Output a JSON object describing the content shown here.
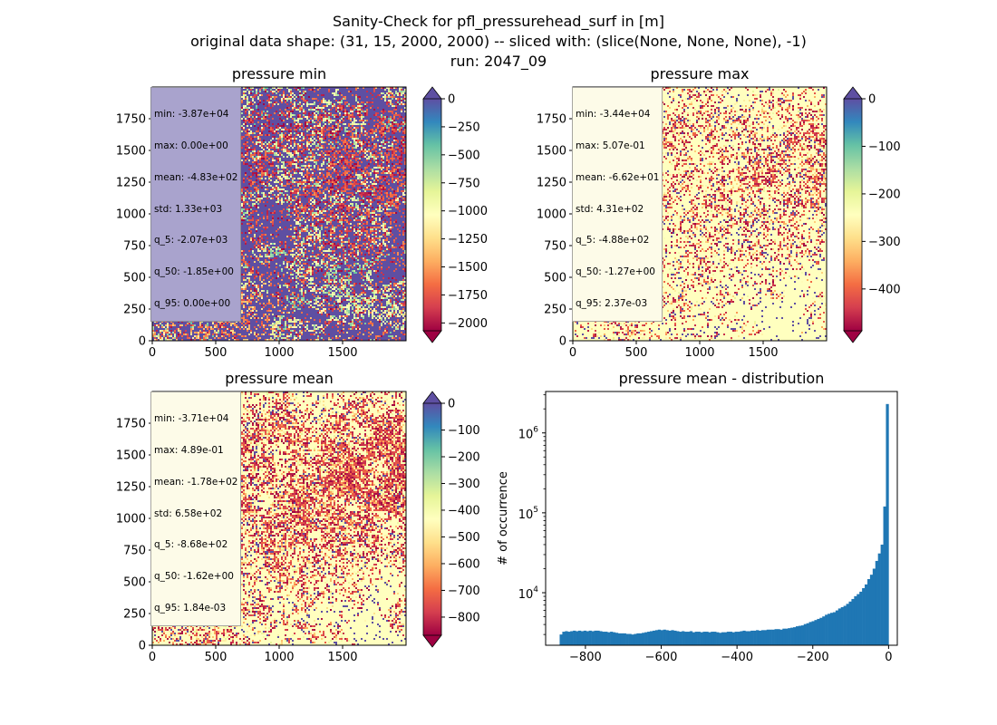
{
  "figure": {
    "title_lines": [
      "Sanity-Check for pfl_pressurehead_surf in [m]",
      "original data shape: (31, 15, 2000, 2000) -- sliced with: (slice(None, None, None), -1)",
      "run: 2047_09"
    ]
  },
  "colormap": "Spectral",
  "colormap_stops": [
    "#9e0142",
    "#d53e4f",
    "#f46d43",
    "#fdae61",
    "#fee08b",
    "#ffffbf",
    "#e6f598",
    "#abdda4",
    "#66c2a5",
    "#3288bd",
    "#5e4fa2"
  ],
  "panels": [
    {
      "id": "min",
      "title": "pressure min",
      "x_ticks": [
        "0",
        "500",
        "1000",
        "1500"
      ],
      "y_ticks": [
        "0",
        "250",
        "500",
        "750",
        "1000",
        "1250",
        "1500",
        "1750"
      ],
      "stats": [
        "min: -3.87e+04",
        "max: 0.00e+00",
        "mean: -4.83e+02",
        "std: 1.33e+03",
        "q_5: -2.07e+03",
        "q_50: -1.85e+00",
        "q_95: 0.00e+00"
      ],
      "stats_bg": "#a9a3cd",
      "colorbar": {
        "range": [
          -2070,
          0
        ],
        "ticks": [
          "0",
          "−250",
          "−500",
          "−750",
          "−1000",
          "−1250",
          "−1500",
          "−1750",
          "−2000"
        ]
      }
    },
    {
      "id": "max",
      "title": "pressure max",
      "x_ticks": [
        "0",
        "500",
        "1000",
        "1500"
      ],
      "y_ticks": [
        "0",
        "250",
        "500",
        "750",
        "1000",
        "1250",
        "1500",
        "1750"
      ],
      "stats": [
        "min: -3.44e+04",
        "max: 5.07e-01",
        "mean: -6.62e+01",
        "std: 4.31e+02",
        "q_5: -4.88e+02",
        "q_50: -1.27e+00",
        "q_95: 2.37e-03"
      ],
      "stats_bg": "#fdfbe8",
      "colorbar": {
        "range": [
          -488,
          0
        ],
        "ticks": [
          "0",
          "−100",
          "−200",
          "−300",
          "−400"
        ]
      }
    },
    {
      "id": "mean",
      "title": "pressure mean",
      "x_ticks": [
        "0",
        "500",
        "1000",
        "1500"
      ],
      "y_ticks": [
        "0",
        "250",
        "500",
        "750",
        "1000",
        "1250",
        "1500",
        "1750"
      ],
      "stats": [
        "min: -3.71e+04",
        "max: 4.89e-01",
        "mean: -1.78e+02",
        "std: 6.58e+02",
        "q_5: -8.68e+02",
        "q_50: -1.62e+00",
        "q_95: 1.84e-03"
      ],
      "stats_bg": "#fdfbe8",
      "colorbar": {
        "range": [
          -868,
          0
        ],
        "ticks": [
          "0",
          "−100",
          "−200",
          "−300",
          "−400",
          "−500",
          "−600",
          "−700",
          "−800"
        ]
      }
    }
  ],
  "histogram": {
    "title": "pressure mean - distribution",
    "ylabel": "# of occurrence",
    "bar_color": "#1f77b4",
    "x_ticks": [
      "−800",
      "−600",
      "−400",
      "−200",
      "0"
    ],
    "y_ticks": [
      "10",
      "10",
      "10"
    ],
    "y_tick_exponents": [
      "6",
      "5",
      "4"
    ]
  },
  "chart_data": [
    {
      "type": "heatmap",
      "title": "pressure min",
      "x_range": [
        0,
        2000
      ],
      "y_range": [
        0,
        2000
      ],
      "value_range": [
        -2070,
        0
      ],
      "colorbar_label": ""
    },
    {
      "type": "heatmap",
      "title": "pressure max",
      "x_range": [
        0,
        2000
      ],
      "y_range": [
        0,
        2000
      ],
      "value_range": [
        -488,
        0
      ],
      "colorbar_label": ""
    },
    {
      "type": "heatmap",
      "title": "pressure mean",
      "x_range": [
        0,
        2000
      ],
      "y_range": [
        0,
        2000
      ],
      "value_range": [
        -868,
        0
      ],
      "colorbar_label": ""
    },
    {
      "type": "bar",
      "title": "pressure mean - distribution",
      "xlabel": "",
      "ylabel": "# of occurrence",
      "y_scale": "log",
      "xlim": [
        -905,
        23
      ],
      "ylim": [
        2200,
        3300000
      ],
      "bin_range": [
        -868,
        0
      ],
      "bin_count": 124,
      "bin_counts": [
        3000,
        3250,
        3300,
        3250,
        3300,
        3350,
        3300,
        3350,
        3300,
        3350,
        3300,
        3350,
        3300,
        3350,
        3350,
        3300,
        3250,
        3250,
        3200,
        3250,
        3200,
        3150,
        3100,
        3100,
        3100,
        3050,
        3050,
        3000,
        3050,
        3100,
        3100,
        3150,
        3200,
        3250,
        3300,
        3350,
        3400,
        3450,
        3400,
        3450,
        3400,
        3350,
        3400,
        3350,
        3300,
        3250,
        3300,
        3250,
        3250,
        3300,
        3200,
        3250,
        3250,
        3200,
        3250,
        3250,
        3200,
        3250,
        3250,
        3200,
        3150,
        3200,
        3200,
        3250,
        3250,
        3200,
        3250,
        3250,
        3300,
        3350,
        3300,
        3300,
        3350,
        3350,
        3400,
        3350,
        3400,
        3400,
        3450,
        3450,
        3450,
        3500,
        3500,
        3450,
        3550,
        3550,
        3600,
        3650,
        3700,
        3800,
        3850,
        3900,
        4050,
        4150,
        4300,
        4400,
        4550,
        4700,
        4850,
        5050,
        5300,
        5450,
        5600,
        5700,
        6000,
        6350,
        6600,
        6850,
        7250,
        7750,
        8350,
        9050,
        9600,
        10300,
        11400,
        12700,
        14800,
        16800,
        20000,
        25000,
        31000,
        40000,
        120000,
        2300000
      ]
    }
  ]
}
